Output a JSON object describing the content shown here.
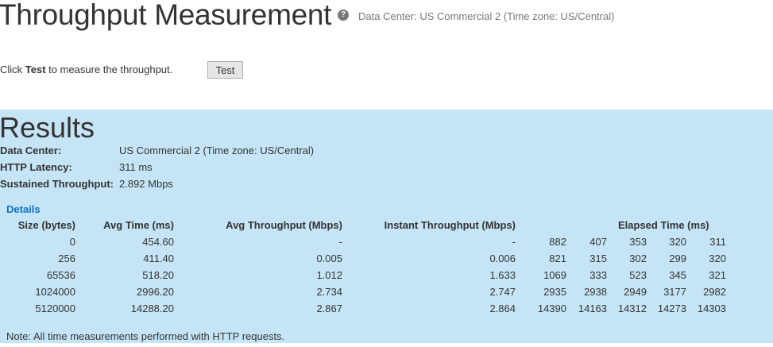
{
  "header": {
    "title": "Throughput Measurement",
    "help_icon": "question-circle-icon",
    "data_center": "Data Center: US Commercial 2 (Time zone: US/Central)"
  },
  "instructions": {
    "prefix": "Click ",
    "bold": "Test",
    "suffix": " to measure the throughput.",
    "button": "Test"
  },
  "results": {
    "title": "Results",
    "summary": [
      {
        "label": "Data Center:",
        "value": "US Commercial 2 (Time zone: US/Central)"
      },
      {
        "label": "HTTP Latency:",
        "value": "311 ms"
      },
      {
        "label": "Sustained Throughput:",
        "value": "2.892 Mbps"
      }
    ],
    "details_label": "Details",
    "columns": [
      "Size (bytes)",
      "Avg Time (ms)",
      "Avg Throughput (Mbps)",
      "Instant Throughput (Mbps)",
      "Elapsed Time (ms)"
    ],
    "rows": [
      {
        "size": "0",
        "avg_time": "454.60",
        "avg_tp": "-",
        "inst_tp": "-",
        "elapsed": [
          "882",
          "407",
          "353",
          "320",
          "311"
        ]
      },
      {
        "size": "256",
        "avg_time": "411.40",
        "avg_tp": "0.005",
        "inst_tp": "0.006",
        "elapsed": [
          "821",
          "315",
          "302",
          "299",
          "320"
        ]
      },
      {
        "size": "65536",
        "avg_time": "518.20",
        "avg_tp": "1.012",
        "inst_tp": "1.633",
        "elapsed": [
          "1069",
          "333",
          "523",
          "345",
          "321"
        ]
      },
      {
        "size": "1024000",
        "avg_time": "2996.20",
        "avg_tp": "2.734",
        "inst_tp": "2.747",
        "elapsed": [
          "2935",
          "2938",
          "2949",
          "3177",
          "2982"
        ]
      },
      {
        "size": "5120000",
        "avg_time": "14288.20",
        "avg_tp": "2.867",
        "inst_tp": "2.864",
        "elapsed": [
          "14390",
          "14163",
          "14312",
          "14273",
          "14303"
        ]
      }
    ],
    "note": "Note: All time measurements performed with HTTP requests."
  },
  "colors": {
    "results_bg": "#c5e5f6",
    "link": "#0f6fc6"
  }
}
